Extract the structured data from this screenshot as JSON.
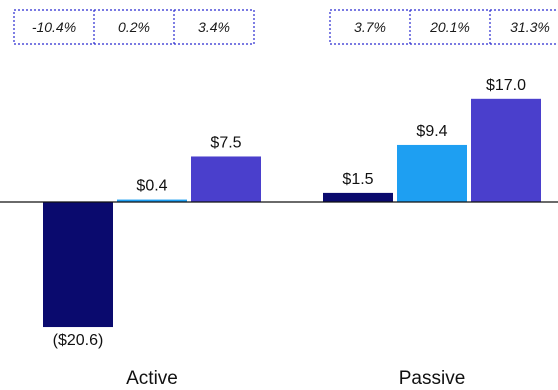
{
  "chart_data": {
    "type": "bar",
    "groups": [
      {
        "label": "Active",
        "percent_labels": [
          "-10.4%",
          "0.2%",
          "3.4%"
        ],
        "values": [
          -20.6,
          0.4,
          7.5
        ],
        "value_labels": [
          "($20.6)",
          "$0.4",
          "$7.5"
        ]
      },
      {
        "label": "Passive",
        "percent_labels": [
          "3.7%",
          "20.1%",
          "31.3%"
        ],
        "values": [
          1.5,
          9.4,
          17.0
        ],
        "value_labels": [
          "$1.5",
          "$9.4",
          "$17.0"
        ]
      }
    ],
    "series_colors": [
      "#0a0a6e",
      "#1e9ff2",
      "#4a3fcc"
    ],
    "zero_line": true,
    "grid": false
  }
}
